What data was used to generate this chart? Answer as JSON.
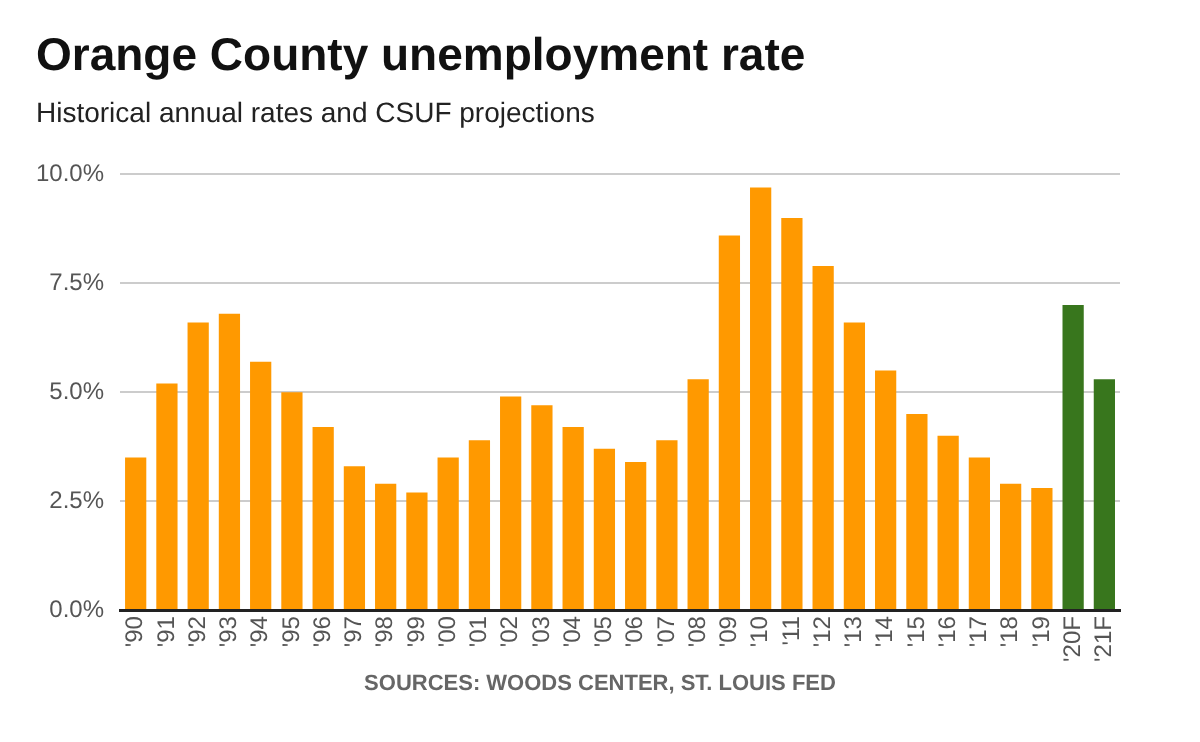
{
  "chart_data": {
    "type": "bar",
    "title": "Orange County unemployment rate",
    "subtitle": "Historical annual rates and CSUF projections",
    "categories": [
      "'90",
      "'91",
      "'92",
      "'93",
      "'94",
      "'95",
      "'96",
      "'97",
      "'98",
      "'99",
      "'00",
      "'01",
      "'02",
      "'03",
      "'04",
      "'05",
      "'06",
      "'07",
      "'08",
      "'09",
      "'10",
      "'11",
      "'12",
      "'13",
      "'14",
      "'15",
      "'16",
      "'17",
      "'18",
      "'19",
      "'20F",
      "'21F"
    ],
    "values": [
      3.5,
      5.2,
      6.6,
      6.8,
      5.7,
      5.0,
      4.2,
      3.3,
      2.9,
      2.7,
      3.5,
      3.9,
      4.9,
      4.7,
      4.2,
      3.7,
      3.4,
      3.9,
      5.3,
      8.6,
      9.7,
      9.0,
      7.9,
      6.6,
      5.5,
      4.5,
      4.0,
      3.5,
      2.9,
      2.8,
      7.0,
      5.3
    ],
    "colors": [
      "#ff9900",
      "#ff9900",
      "#ff9900",
      "#ff9900",
      "#ff9900",
      "#ff9900",
      "#ff9900",
      "#ff9900",
      "#ff9900",
      "#ff9900",
      "#ff9900",
      "#ff9900",
      "#ff9900",
      "#ff9900",
      "#ff9900",
      "#ff9900",
      "#ff9900",
      "#ff9900",
      "#ff9900",
      "#ff9900",
      "#ff9900",
      "#ff9900",
      "#ff9900",
      "#ff9900",
      "#ff9900",
      "#ff9900",
      "#ff9900",
      "#ff9900",
      "#ff9900",
      "#ff9900",
      "#38761d",
      "#38761d"
    ],
    "ylim": [
      0,
      10
    ],
    "yticks": [
      {
        "value": 0,
        "label": "0.0%"
      },
      {
        "value": 2.5,
        "label": "2.5%"
      },
      {
        "value": 5,
        "label": "5.0%"
      },
      {
        "value": 7.5,
        "label": "7.5%"
      },
      {
        "value": 10,
        "label": "10.0%"
      }
    ],
    "grid": "y",
    "legend": false,
    "annotations": [
      "SOURCES: WOODS CENTER, ST. LOUIS FED"
    ]
  }
}
